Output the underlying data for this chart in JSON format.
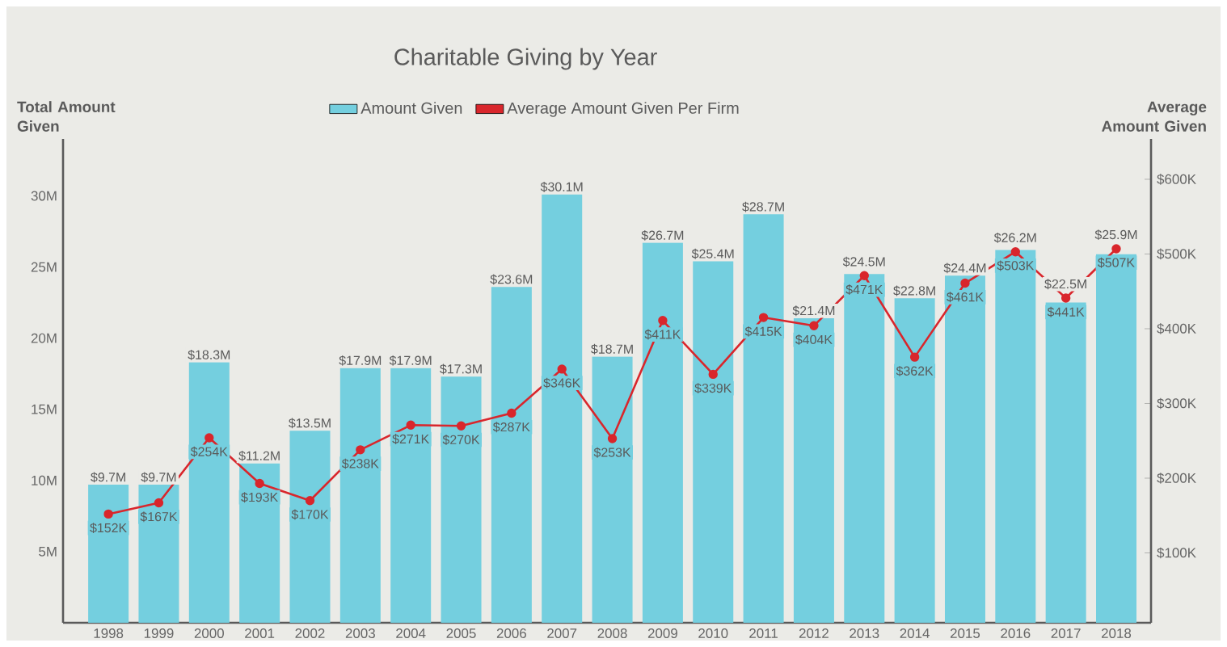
{
  "chart_data": {
    "type": "bar",
    "title": "Charitable Giving by Year",
    "ylabel": "Total Amount Given",
    "y2label": "Average Amount Given",
    "categories": [
      "1998",
      "1999",
      "2000",
      "2001",
      "2002",
      "2003",
      "2004",
      "2005",
      "2006",
      "2007",
      "2008",
      "2009",
      "2010",
      "2011",
      "2012",
      "2013",
      "2014",
      "2015",
      "2016",
      "2017",
      "2018"
    ],
    "series": [
      {
        "name": "Amount Given",
        "color": "#74cfdf",
        "values": [
          9.7,
          9.7,
          18.3,
          11.2,
          13.5,
          17.9,
          17.9,
          17.3,
          23.6,
          30.1,
          18.7,
          26.7,
          25.4,
          28.7,
          21.4,
          24.5,
          22.8,
          24.4,
          26.2,
          22.5,
          25.9
        ],
        "value_labels": [
          "$9.7M",
          "$9.7M",
          "$18.3M",
          "$11.2M",
          "$13.5M",
          "$17.9M",
          "$17.9M",
          "$17.3M",
          "$23.6M",
          "$30.1M",
          "$18.7M",
          "$26.7M",
          "$25.4M",
          "$28.7M",
          "$21.4M",
          "$24.5M",
          "$22.8M",
          "$24.4M",
          "$26.2M",
          "$22.5M",
          "$25.9M"
        ]
      },
      {
        "name": "Average Amount Given Per Firm",
        "type": "line",
        "axis": "y2",
        "color": "#d9262c",
        "values": [
          152,
          167,
          254,
          193,
          170,
          238,
          271,
          270,
          287,
          346,
          253,
          411,
          339,
          415,
          404,
          471,
          362,
          461,
          503,
          441,
          507
        ],
        "value_labels": [
          "$152K",
          "$167K",
          "$254K",
          "$193K",
          "$170K",
          "$238K",
          "$271K",
          "$270K",
          "$287K",
          "$346K",
          "$253K",
          "$411K",
          "$339K",
          "$415K",
          "$404K",
          "$471K",
          "$362K",
          "$461K",
          "$503K",
          "$441K",
          "$507K"
        ]
      }
    ],
    "ylim": [
      0,
      34
    ],
    "yticks": [
      {
        "value": 5,
        "label": "5M"
      },
      {
        "value": 10,
        "label": "10M"
      },
      {
        "value": 15,
        "label": "15M"
      },
      {
        "value": 20,
        "label": "20M"
      },
      {
        "value": 25,
        "label": "25M"
      },
      {
        "value": 30,
        "label": "30M"
      }
    ],
    "y2lim": [
      6.5,
      654
    ],
    "y2ticks": [
      {
        "value": 100,
        "label": "$100K"
      },
      {
        "value": 200,
        "label": "$200K"
      },
      {
        "value": 300,
        "label": "$300K"
      },
      {
        "value": 400,
        "label": "$400K"
      },
      {
        "value": 500,
        "label": "$500K"
      },
      {
        "value": 600,
        "label": "$600K"
      }
    ],
    "marker": "circle",
    "line_style": "solid",
    "legend": "top",
    "grid": false
  }
}
